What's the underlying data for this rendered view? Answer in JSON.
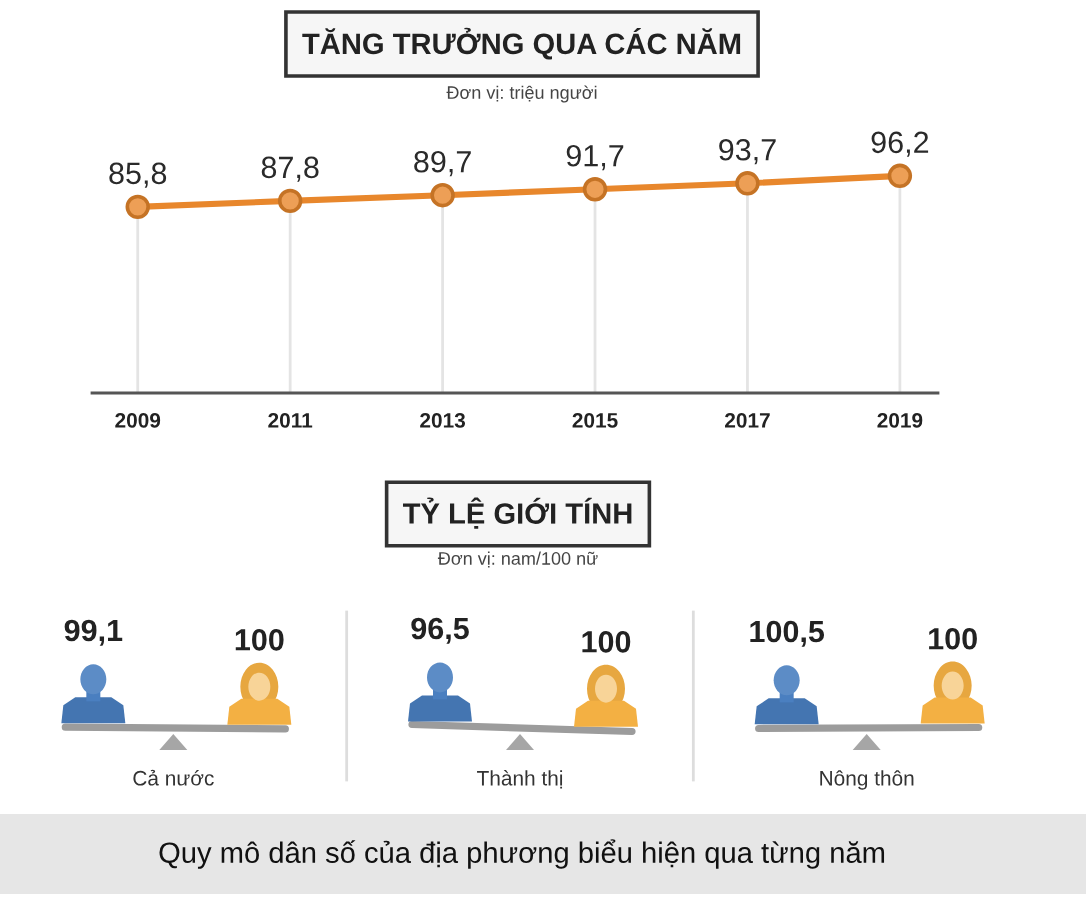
{
  "chart_data": [
    {
      "type": "line",
      "title": "TĂNG TRƯỞNG QUA CÁC NĂM",
      "subtitle": "Đơn vị: triệu người",
      "categories": [
        "2009",
        "2011",
        "2013",
        "2015",
        "2017",
        "2019"
      ],
      "values": [
        85.8,
        87.8,
        89.7,
        91.7,
        93.7,
        96.2
      ],
      "value_labels": [
        "85,8",
        "87,8",
        "89,7",
        "91,7",
        "93,7",
        "96,2"
      ],
      "color": "#e8872c",
      "tick_labels": "x",
      "grid": "x",
      "marker": "circle",
      "line_style": "solid"
    },
    {
      "type": "other",
      "title": "TỶ LỆ GIỚI TÍNH",
      "subtitle": "Đơn vị: nam/100 nữ",
      "categories": [
        "Cả nước",
        "Thành thị",
        "Nông thôn"
      ],
      "series": [
        {
          "color": "#4a7fc0",
          "values": [
            99.1,
            96.5,
            100.5
          ],
          "value_labels": [
            "99,1",
            "96,5",
            "100,5"
          ]
        },
        {
          "color": "#f3b043",
          "values": [
            100,
            100,
            100
          ],
          "value_labels": [
            "100",
            "100",
            "100"
          ]
        }
      ],
      "annotations": [
        "Quy mô dân số của địa phương biểu hiện qua từng năm"
      ]
    }
  ]
}
